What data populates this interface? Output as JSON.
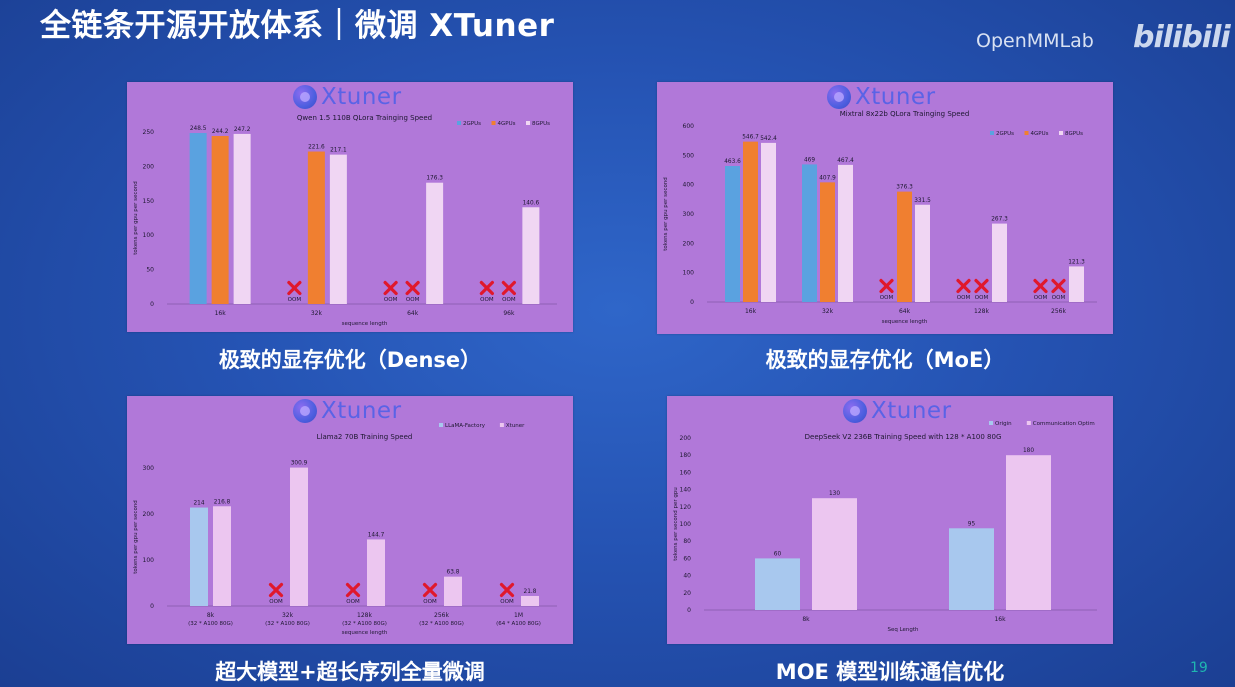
{
  "slide": {
    "title": "全链条开源开放体系｜微调 XTuner",
    "brand": "OpenMMLab",
    "bilibili": "bilibili",
    "page_number": "19"
  },
  "logo_text": "Xtuner",
  "colors": {
    "panel": "#b178d9",
    "blue": "#5aa2e0",
    "orange": "#f07f30",
    "pink": "#f0d6f3",
    "lightblue": "#a8c8ee",
    "lightpink": "#ecc6f0",
    "axis_text": "#1d1730",
    "oom_cross": "#e0182c"
  },
  "chart_data": [
    {
      "type": "bar",
      "title": "Qwen 1.5 110B QLora Trainging Speed",
      "caption": "极致的显存优化（Dense）",
      "xlabel": "sequence length",
      "ylabel": "tokens per gpu per second",
      "ylim": [
        0,
        250
      ],
      "yticks": [
        0,
        50,
        100,
        150,
        200,
        250
      ],
      "categories": [
        "16k",
        "32k",
        "64k",
        "96k"
      ],
      "legend_position": "top-right",
      "series": [
        {
          "name": "2GPUs",
          "color": "#5aa2e0",
          "values": [
            248.5,
            null,
            null,
            null
          ]
        },
        {
          "name": "4GPUs",
          "color": "#f07f30",
          "values": [
            244.2,
            221.6,
            null,
            null
          ]
        },
        {
          "name": "8GPUs",
          "color": "#f0d6f3",
          "values": [
            247.2,
            217.1,
            176.3,
            140.6
          ]
        }
      ],
      "oom_label": "OOM"
    },
    {
      "type": "bar",
      "title": "Mixtral 8x22b QLora Trainging Speed",
      "caption": "极致的显存优化（MoE）",
      "xlabel": "sequence length",
      "ylabel": "tokens per gpu per second",
      "ylim": [
        0,
        600
      ],
      "yticks": [
        0,
        100,
        200,
        300,
        400,
        500,
        600
      ],
      "categories": [
        "16k",
        "32k",
        "64k",
        "128k",
        "256k"
      ],
      "legend_position": "top-right",
      "series": [
        {
          "name": "2GPUs",
          "color": "#5aa2e0",
          "values": [
            463.6,
            469,
            null,
            null,
            null
          ]
        },
        {
          "name": "4GPUs",
          "color": "#f07f30",
          "values": [
            546.7,
            407.9,
            376.3,
            null,
            null
          ]
        },
        {
          "name": "8GPUs",
          "color": "#f0d6f3",
          "values": [
            542.4,
            467.4,
            331.5,
            267.3,
            121.3
          ]
        }
      ],
      "oom_label": "OOM"
    },
    {
      "type": "bar",
      "title": "Llama2 70B Training Speed",
      "caption": "超大模型+超长序列全量微调",
      "xlabel": "sequence length",
      "ylabel": "tokens per gpu per second",
      "ylim": [
        0,
        300
      ],
      "yticks": [
        0,
        100,
        200,
        300
      ],
      "categories": [
        "8k",
        "32k",
        "128k",
        "256k",
        "1M"
      ],
      "category_sublabels": [
        "(32 * A100 80G)",
        "(32 * A100 80G)",
        "(32 * A100 80G)",
        "(32 * A100 80G)",
        "(64 * A100 80G)"
      ],
      "legend_position": "top-right",
      "series": [
        {
          "name": "LLaMA-Factory",
          "color": "#a8c8ee",
          "values": [
            214,
            null,
            null,
            null,
            null
          ]
        },
        {
          "name": "Xtuner",
          "color": "#ecc6f0",
          "values": [
            216.8,
            300.9,
            144.7,
            63.8,
            21.8
          ]
        }
      ],
      "oom_label": "OOM"
    },
    {
      "type": "bar",
      "title": "DeepSeek V2 236B Training Speed with 128 * A100 80G",
      "caption": "MOE 模型训练通信优化",
      "xlabel": "Seq Length",
      "ylabel": "tokens per second per gpu",
      "ylim": [
        0,
        200
      ],
      "yticks": [
        0,
        20,
        40,
        60,
        80,
        100,
        120,
        140,
        160,
        180,
        200
      ],
      "categories": [
        "8k",
        "16k"
      ],
      "legend_position": "top-right",
      "series": [
        {
          "name": "Origin",
          "color": "#a8c8ee",
          "values": [
            60,
            95
          ]
        },
        {
          "name": "Communication Optim",
          "color": "#ecc6f0",
          "values": [
            130,
            180
          ]
        }
      ]
    }
  ]
}
